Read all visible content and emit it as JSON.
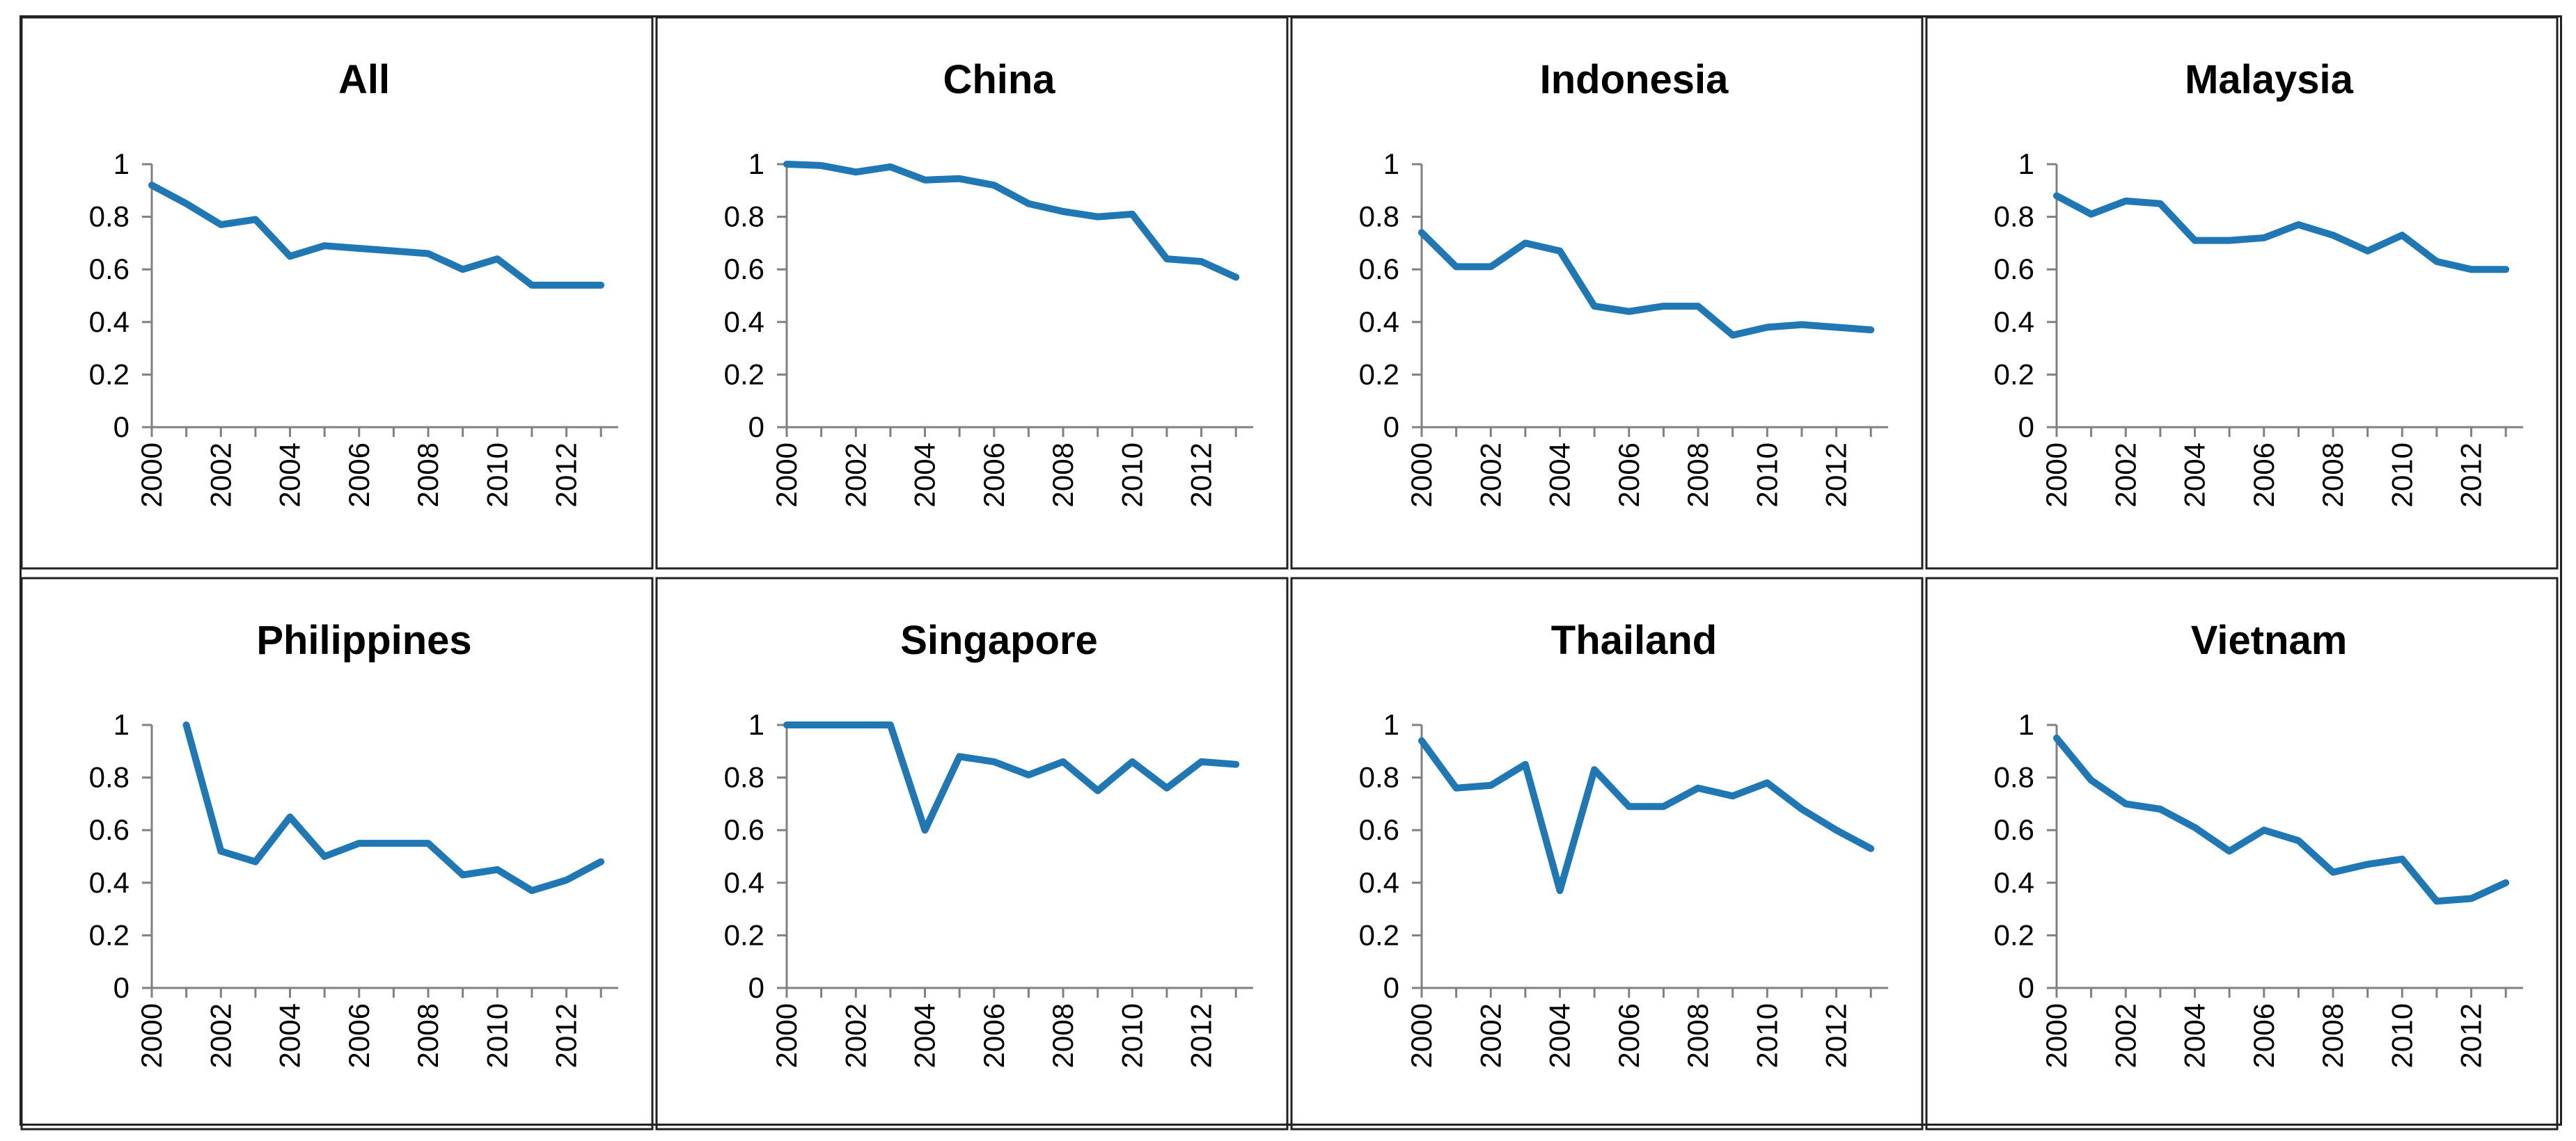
{
  "figure": {
    "type": "small-multiples-line"
  },
  "style": {
    "line_color": "#1f77b4",
    "axis_color": "#808080",
    "text_color": "#000000",
    "frame_color": "#222222"
  },
  "chart_data": [
    {
      "type": "line",
      "title": "All",
      "x": [
        2000,
        2001,
        2002,
        2003,
        2004,
        2005,
        2006,
        2007,
        2008,
        2009,
        2010,
        2011,
        2012,
        2013
      ],
      "values": [
        0.92,
        0.85,
        0.77,
        0.79,
        0.65,
        0.69,
        0.68,
        0.67,
        0.66,
        0.6,
        0.64,
        0.54,
        0.54,
        0.54
      ],
      "xticks": [
        "2000",
        "2002",
        "2004",
        "2006",
        "2008",
        "2010",
        "2012"
      ],
      "yticks": [
        "0",
        "0.2",
        "0.4",
        "0.6",
        "0.8",
        "1"
      ],
      "ylim": [
        0,
        1
      ],
      "xlabel": "",
      "ylabel": ""
    },
    {
      "type": "line",
      "title": "China",
      "x": [
        2000,
        2001,
        2002,
        2003,
        2004,
        2005,
        2006,
        2007,
        2008,
        2009,
        2010,
        2011,
        2012,
        2013
      ],
      "values": [
        1.0,
        0.995,
        0.97,
        0.99,
        0.94,
        0.945,
        0.92,
        0.85,
        0.82,
        0.8,
        0.81,
        0.64,
        0.63,
        0.57
      ],
      "xticks": [
        "2000",
        "2002",
        "2004",
        "2006",
        "2008",
        "2010",
        "2012"
      ],
      "yticks": [
        "0",
        "0.2",
        "0.4",
        "0.6",
        "0.8",
        "1"
      ],
      "ylim": [
        0,
        1
      ],
      "xlabel": "",
      "ylabel": ""
    },
    {
      "type": "line",
      "title": "Indonesia",
      "x": [
        2000,
        2001,
        2002,
        2003,
        2004,
        2005,
        2006,
        2007,
        2008,
        2009,
        2010,
        2011,
        2012,
        2013
      ],
      "values": [
        0.74,
        0.61,
        0.61,
        0.7,
        0.67,
        0.46,
        0.44,
        0.46,
        0.46,
        0.35,
        0.38,
        0.39,
        0.38,
        0.37
      ],
      "xticks": [
        "2000",
        "2002",
        "2004",
        "2006",
        "2008",
        "2010",
        "2012"
      ],
      "yticks": [
        "0",
        "0.2",
        "0.4",
        "0.6",
        "0.8",
        "1"
      ],
      "ylim": [
        0,
        1
      ],
      "xlabel": "",
      "ylabel": ""
    },
    {
      "type": "line",
      "title": "Malaysia",
      "x": [
        2000,
        2001,
        2002,
        2003,
        2004,
        2005,
        2006,
        2007,
        2008,
        2009,
        2010,
        2011,
        2012,
        2013
      ],
      "values": [
        0.88,
        0.81,
        0.86,
        0.85,
        0.71,
        0.71,
        0.72,
        0.77,
        0.73,
        0.67,
        0.73,
        0.63,
        0.6,
        0.6
      ],
      "xticks": [
        "2000",
        "2002",
        "2004",
        "2006",
        "2008",
        "2010",
        "2012"
      ],
      "yticks": [
        "0",
        "0.2",
        "0.4",
        "0.6",
        "0.8",
        "1"
      ],
      "ylim": [
        0,
        1
      ],
      "xlabel": "",
      "ylabel": ""
    },
    {
      "type": "line",
      "title": "Philippines",
      "x": [
        2001,
        2002,
        2003,
        2004,
        2005,
        2006,
        2007,
        2008,
        2009,
        2010,
        2011,
        2012,
        2013
      ],
      "values": [
        1.0,
        0.52,
        0.48,
        0.65,
        0.5,
        0.55,
        0.55,
        0.55,
        0.43,
        0.45,
        0.37,
        0.41,
        0.48
      ],
      "xticks": [
        "2000",
        "2002",
        "2004",
        "2006",
        "2008",
        "2010",
        "2012"
      ],
      "yticks": [
        "0",
        "0.2",
        "0.4",
        "0.6",
        "0.8",
        "1"
      ],
      "ylim": [
        0,
        1
      ],
      "xlabel": "",
      "ylabel": ""
    },
    {
      "type": "line",
      "title": "Singapore",
      "x": [
        2000,
        2001,
        2002,
        2003,
        2004,
        2005,
        2006,
        2007,
        2008,
        2009,
        2010,
        2011,
        2012,
        2013
      ],
      "values": [
        1.0,
        1.0,
        1.0,
        1.0,
        0.6,
        0.88,
        0.86,
        0.81,
        0.86,
        0.75,
        0.86,
        0.76,
        0.86,
        0.85
      ],
      "xticks": [
        "2000",
        "2002",
        "2004",
        "2006",
        "2008",
        "2010",
        "2012"
      ],
      "yticks": [
        "0",
        "0.2",
        "0.4",
        "0.6",
        "0.8",
        "1"
      ],
      "ylim": [
        0,
        1
      ],
      "xlabel": "",
      "ylabel": ""
    },
    {
      "type": "line",
      "title": "Thailand",
      "x": [
        2000,
        2001,
        2002,
        2003,
        2004,
        2005,
        2006,
        2007,
        2008,
        2009,
        2010,
        2011,
        2012,
        2013
      ],
      "values": [
        0.94,
        0.76,
        0.77,
        0.85,
        0.37,
        0.83,
        0.69,
        0.69,
        0.76,
        0.73,
        0.78,
        0.68,
        0.6,
        0.53
      ],
      "xticks": [
        "2000",
        "2002",
        "2004",
        "2006",
        "2008",
        "2010",
        "2012"
      ],
      "yticks": [
        "0",
        "0.2",
        "0.4",
        "0.6",
        "0.8",
        "1"
      ],
      "ylim": [
        0,
        1
      ],
      "xlabel": "",
      "ylabel": ""
    },
    {
      "type": "line",
      "title": "Vietnam",
      "x": [
        2000,
        2001,
        2002,
        2003,
        2004,
        2005,
        2006,
        2007,
        2008,
        2009,
        2010,
        2011,
        2012,
        2013
      ],
      "values": [
        0.95,
        0.79,
        0.7,
        0.68,
        0.61,
        0.52,
        0.6,
        0.56,
        0.44,
        0.47,
        0.49,
        0.33,
        0.34,
        0.4
      ],
      "xticks": [
        "2000",
        "2002",
        "2004",
        "2006",
        "2008",
        "2010",
        "2012"
      ],
      "yticks": [
        "0",
        "0.2",
        "0.4",
        "0.6",
        "0.8",
        "1"
      ],
      "ylim": [
        0,
        1
      ],
      "xlabel": "",
      "ylabel": ""
    }
  ]
}
